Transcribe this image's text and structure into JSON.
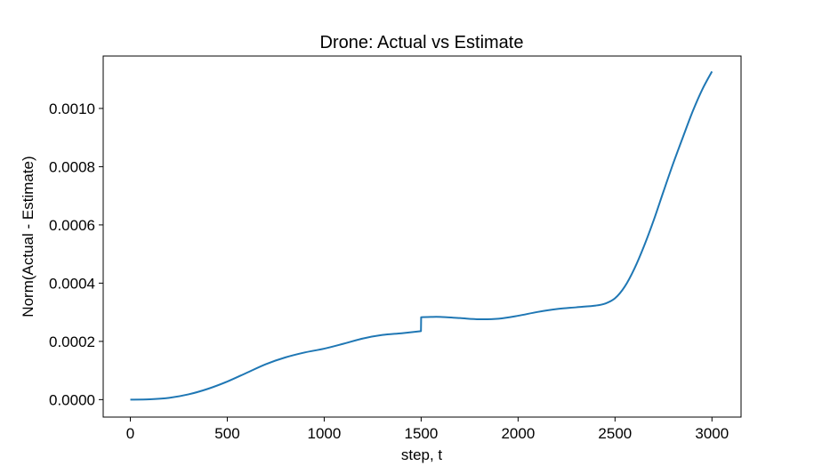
{
  "chart_data": {
    "type": "line",
    "title": "Drone: Actual vs Estimate",
    "xlabel": "step, t",
    "ylabel": "Norm(Actual - Estimate)",
    "xlim": [
      -140,
      3150
    ],
    "ylim": [
      -6e-05,
      0.00118
    ],
    "xticks": [
      0,
      500,
      1000,
      1500,
      2000,
      2500,
      3000
    ],
    "xtick_labels": [
      "0",
      "500",
      "1000",
      "1500",
      "2000",
      "2500",
      "3000"
    ],
    "yticks": [
      0.0,
      0.0002,
      0.0004,
      0.0006,
      0.0008,
      0.001
    ],
    "ytick_labels": [
      "0.0000",
      "0.0002",
      "0.0004",
      "0.0006",
      "0.0008",
      "0.0010"
    ],
    "grid": false,
    "line_color": "#1f77b4",
    "series": [
      {
        "x": [
          0,
          100,
          200,
          300,
          400,
          500,
          600,
          700,
          800,
          900,
          1000,
          1100,
          1200,
          1300,
          1400,
          1499,
          1500,
          1550,
          1600,
          1700,
          1800,
          1900,
          2000,
          2100,
          2200,
          2300,
          2400,
          2450,
          2500,
          2550,
          2600,
          2650,
          2700,
          2750,
          2800,
          2850,
          2900,
          2950,
          3000
        ],
        "y": [
          0.0,
          1e-06,
          6e-06,
          1.8e-05,
          3.7e-05,
          6.2e-05,
          9.2e-05,
          0.000122,
          0.000145,
          0.000162,
          0.000175,
          0.000192,
          0.00021,
          0.000222,
          0.000228,
          0.000235,
          0.000283,
          0.000284,
          0.000284,
          0.00028,
          0.000276,
          0.000278,
          0.000288,
          0.000301,
          0.000311,
          0.000317,
          0.000323,
          0.00033,
          0.000348,
          0.000388,
          0.00045,
          0.000528,
          0.000617,
          0.000715,
          0.000811,
          0.000901,
          0.000989,
          0.001065,
          0.001127
        ]
      }
    ]
  }
}
